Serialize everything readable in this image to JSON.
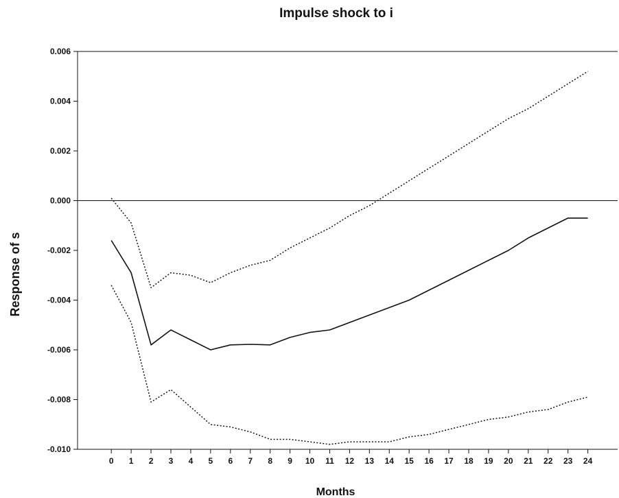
{
  "chart_data": {
    "type": "line",
    "title": "Impulse shock to i",
    "xlabel": "Months",
    "ylabel": "Response of s",
    "x": [
      0,
      1,
      2,
      3,
      4,
      5,
      6,
      7,
      8,
      9,
      10,
      11,
      12,
      13,
      14,
      15,
      16,
      17,
      18,
      19,
      20,
      21,
      22,
      23,
      24
    ],
    "xlim": [
      -1.7,
      25.5
    ],
    "ylim": [
      -0.01,
      0.006
    ],
    "yticks": [
      "0.006",
      "0.004",
      "0.002",
      "0.000",
      "-0.002",
      "-0.004",
      "-0.006",
      "-0.008",
      "-0.010"
    ],
    "grid": false,
    "series": [
      {
        "style": "solid",
        "values": [
          -0.0016,
          -0.0029,
          -0.0058,
          -0.0052,
          -0.0056,
          -0.006,
          -0.0058,
          -0.00578,
          -0.0058,
          -0.0055,
          -0.0053,
          -0.0052,
          -0.0049,
          -0.0046,
          -0.0043,
          -0.004,
          -0.0036,
          -0.0032,
          -0.0028,
          -0.0024,
          -0.002,
          -0.0015,
          -0.0011,
          -0.0007,
          -0.0007
        ]
      },
      {
        "style": "dotted",
        "values": [
          0.0001,
          -0.0009,
          -0.0035,
          -0.0029,
          -0.003,
          -0.0033,
          -0.0029,
          -0.0026,
          -0.0024,
          -0.0019,
          -0.0015,
          -0.0011,
          -0.0006,
          -0.0002,
          0.0003,
          0.0008,
          0.0013,
          0.0018,
          0.0023,
          0.0028,
          0.0033,
          0.0037,
          0.0042,
          0.0047,
          0.0052
        ]
      },
      {
        "style": "dotted",
        "values": [
          -0.0034,
          -0.0049,
          -0.0081,
          -0.0076,
          -0.0083,
          -0.009,
          -0.0091,
          -0.0093,
          -0.0096,
          -0.0096,
          -0.0097,
          -0.0098,
          -0.0097,
          -0.0097,
          -0.0097,
          -0.0095,
          -0.0094,
          -0.0092,
          -0.009,
          -0.0088,
          -0.0087,
          -0.0085,
          -0.0084,
          -0.0081,
          -0.0079
        ]
      }
    ],
    "zero_line": true
  }
}
